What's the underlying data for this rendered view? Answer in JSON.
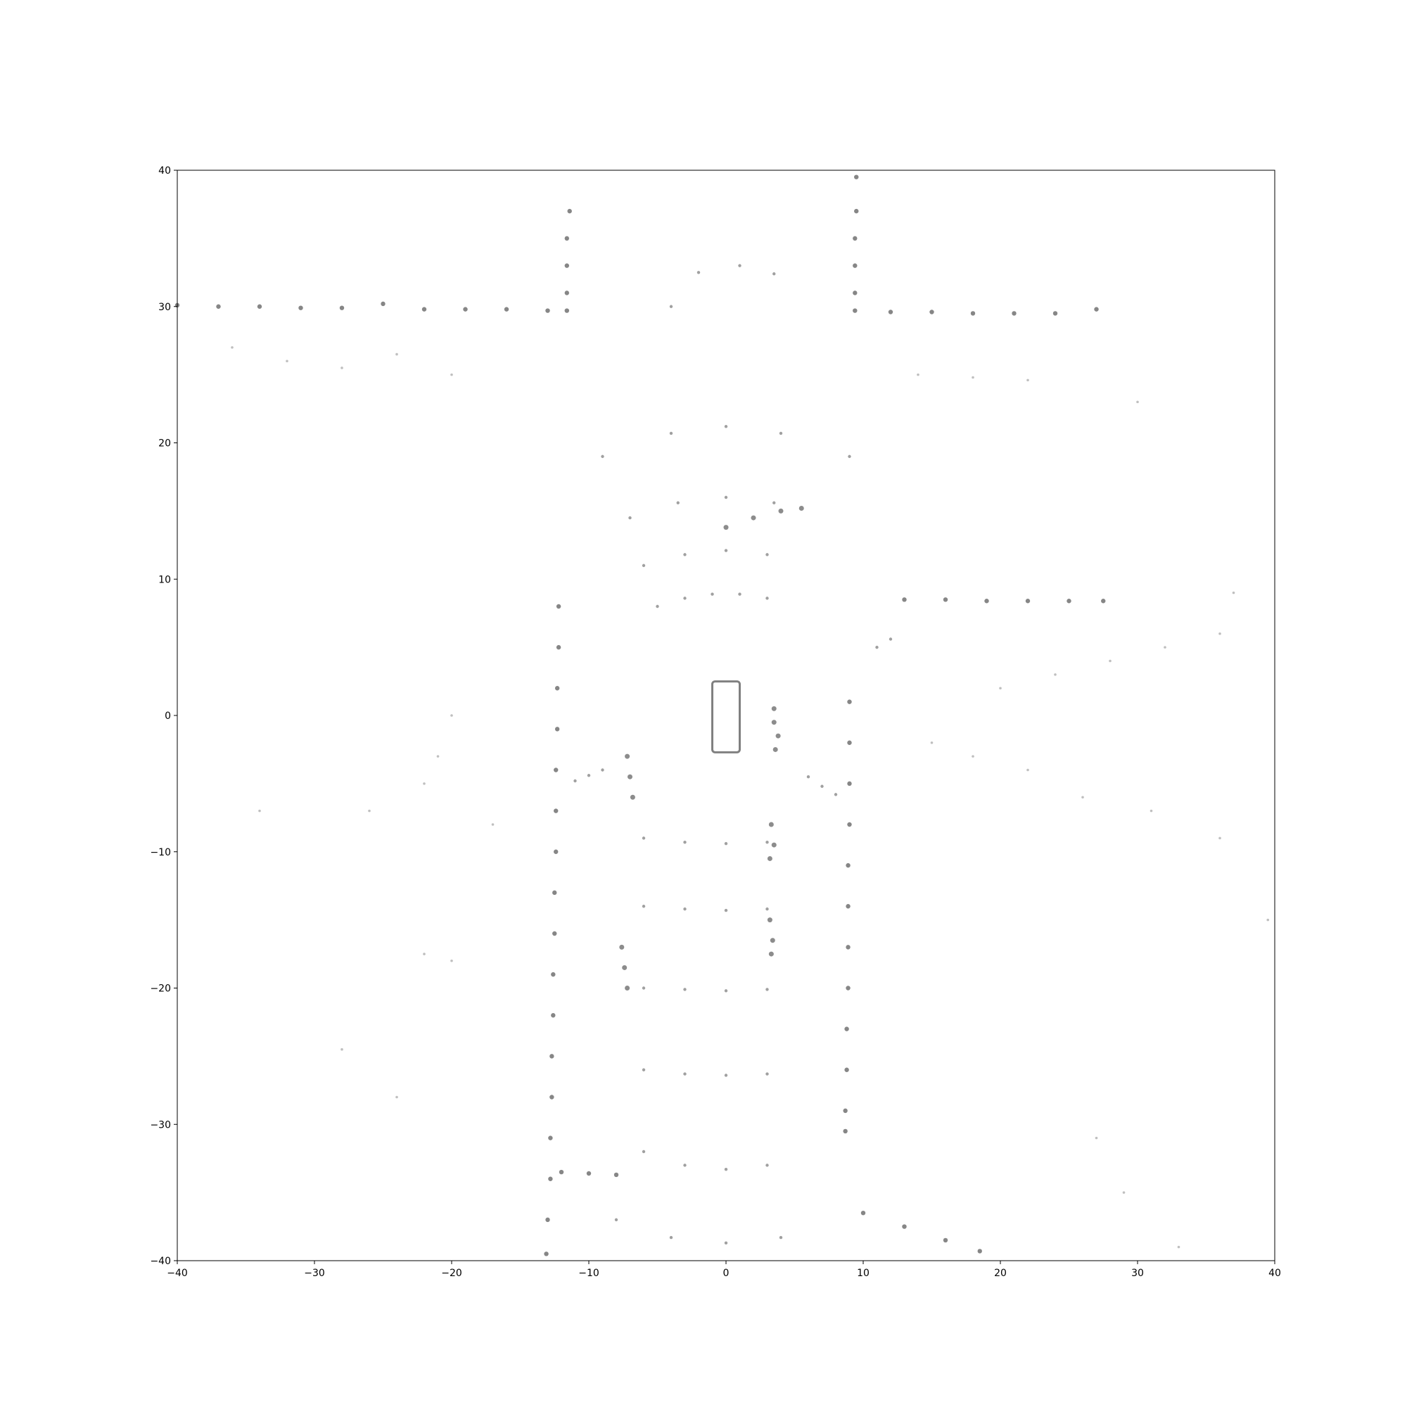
{
  "chart_data": {
    "type": "scatter",
    "title": "",
    "xlabel": "",
    "ylabel": "",
    "xlim": [
      -40,
      40
    ],
    "ylim": [
      -40,
      40
    ],
    "xticks": [
      -40,
      -30,
      -20,
      -10,
      0,
      10,
      20,
      30,
      40
    ],
    "yticks": [
      -40,
      -30,
      -20,
      -10,
      0,
      10,
      20,
      30,
      40
    ],
    "xtick_labels": [
      "−40",
      "−30",
      "−20",
      "−10",
      "0",
      "10",
      "20",
      "30",
      "40"
    ],
    "ytick_labels": [
      "−40",
      "−30",
      "−20",
      "−10",
      "0",
      "10",
      "20",
      "30",
      "40"
    ],
    "grid": false,
    "legend": "none",
    "point_color": "#808080",
    "description_of_scene": "top-down lidar point cloud",
    "ego_vehicle": {
      "x_range": [
        -1,
        1
      ],
      "y_range": [
        -2.7,
        2.5
      ]
    },
    "series": [
      {
        "kind": "wall",
        "points": [
          [
            -40,
            30.1
          ],
          [
            -37,
            30.0
          ],
          [
            -34,
            30.0
          ],
          [
            -31,
            29.9
          ],
          [
            -28,
            29.9
          ],
          [
            -25,
            30.2
          ],
          [
            -22,
            29.8
          ],
          [
            -19,
            29.8
          ],
          [
            -16,
            29.8
          ],
          [
            -13,
            29.7
          ],
          [
            -11.6,
            29.7
          ],
          [
            -11.6,
            31
          ],
          [
            -11.6,
            33
          ],
          [
            -11.6,
            35
          ],
          [
            -11.4,
            37
          ],
          [
            9.4,
            31
          ],
          [
            9.4,
            33
          ],
          [
            9.4,
            35
          ],
          [
            9.5,
            37
          ],
          [
            9.5,
            39.5
          ],
          [
            9.4,
            29.7
          ],
          [
            12,
            29.6
          ],
          [
            15,
            29.6
          ],
          [
            18,
            29.5
          ],
          [
            21,
            29.5
          ],
          [
            24,
            29.5
          ],
          [
            27,
            29.8
          ],
          [
            -12.2,
            8
          ],
          [
            -12.2,
            5
          ],
          [
            -12.3,
            2
          ],
          [
            -12.3,
            -1
          ],
          [
            -12.4,
            -4
          ],
          [
            -12.4,
            -7
          ],
          [
            -12.4,
            -10
          ],
          [
            -12.5,
            -13
          ],
          [
            -12.5,
            -16
          ],
          [
            -12.6,
            -19
          ],
          [
            -12.6,
            -22
          ],
          [
            -12.7,
            -25
          ],
          [
            -12.7,
            -28
          ],
          [
            -12.8,
            -31
          ],
          [
            -12.8,
            -34
          ],
          [
            -13.0,
            -37
          ],
          [
            -13.1,
            -39.5
          ],
          [
            9.0,
            1
          ],
          [
            9.0,
            -2
          ],
          [
            9.0,
            -5
          ],
          [
            9.0,
            -8
          ],
          [
            8.9,
            -11
          ],
          [
            8.9,
            -14
          ],
          [
            8.9,
            -17
          ],
          [
            8.9,
            -20
          ],
          [
            8.8,
            -23
          ],
          [
            8.8,
            -26
          ],
          [
            8.7,
            -29
          ],
          [
            8.7,
            -30.5
          ],
          [
            13,
            8.5
          ],
          [
            16,
            8.5
          ],
          [
            19,
            8.4
          ],
          [
            22,
            8.4
          ],
          [
            25,
            8.4
          ],
          [
            27.5,
            8.4
          ],
          [
            -12,
            -33.5
          ],
          [
            -10,
            -33.6
          ],
          [
            -8,
            -33.7
          ],
          [
            10,
            -36.5
          ],
          [
            13,
            -37.5
          ],
          [
            16,
            -38.5
          ],
          [
            18.5,
            -39.3
          ]
        ]
      },
      {
        "kind": "parked_vehicle",
        "points": [
          [
            3.5,
            -0.5
          ],
          [
            3.8,
            -1.5
          ],
          [
            3.6,
            -2.5
          ],
          [
            3.5,
            0.5
          ],
          [
            -7.2,
            -3
          ],
          [
            -7.0,
            -4.5
          ],
          [
            -6.8,
            -6
          ],
          [
            3.3,
            -8
          ],
          [
            3.5,
            -9.5
          ],
          [
            3.2,
            -10.5
          ],
          [
            3.2,
            -15
          ],
          [
            3.4,
            -16.5
          ],
          [
            3.3,
            -17.5
          ],
          [
            -7.6,
            -17
          ],
          [
            -7.4,
            -18.5
          ],
          [
            -7.2,
            -20
          ],
          [
            0,
            13.8
          ],
          [
            2,
            14.5
          ],
          [
            4,
            15
          ],
          [
            5.5,
            15.2
          ]
        ]
      },
      {
        "kind": "ground_ring",
        "points": [
          [
            -5,
            8
          ],
          [
            -3,
            8.6
          ],
          [
            -1,
            8.9
          ],
          [
            1,
            8.9
          ],
          [
            3,
            8.6
          ],
          [
            -6,
            11
          ],
          [
            -3,
            11.8
          ],
          [
            0,
            12.1
          ],
          [
            3,
            11.8
          ],
          [
            -7,
            14.5
          ],
          [
            -3.5,
            15.6
          ],
          [
            0,
            16
          ],
          [
            3.5,
            15.6
          ],
          [
            -9,
            19
          ],
          [
            -4,
            20.7
          ],
          [
            0,
            21.2
          ],
          [
            4,
            20.7
          ],
          [
            9,
            19
          ],
          [
            -6,
            -9
          ],
          [
            -3,
            -9.3
          ],
          [
            0,
            -9.4
          ],
          [
            3,
            -9.3
          ],
          [
            -6,
            -14
          ],
          [
            -3,
            -14.2
          ],
          [
            0,
            -14.3
          ],
          [
            3,
            -14.2
          ],
          [
            -6,
            -20
          ],
          [
            -3,
            -20.1
          ],
          [
            0,
            -20.2
          ],
          [
            3,
            -20.1
          ],
          [
            -6,
            -26
          ],
          [
            -3,
            -26.3
          ],
          [
            0,
            -26.4
          ],
          [
            3,
            -26.3
          ],
          [
            -6,
            -32
          ],
          [
            -3,
            -33
          ],
          [
            0,
            -33.3
          ],
          [
            3,
            -33
          ],
          [
            -8,
            -37
          ],
          [
            -4,
            -38.3
          ],
          [
            0,
            -38.7
          ],
          [
            4,
            -38.3
          ],
          [
            -9,
            -4
          ],
          [
            -10,
            -4.4
          ],
          [
            -11,
            -4.8
          ],
          [
            6,
            -4.5
          ],
          [
            7,
            -5.2
          ],
          [
            8,
            -5.8
          ],
          [
            11,
            5
          ],
          [
            12,
            5.6
          ],
          [
            -4,
            30
          ],
          [
            -2,
            32.5
          ],
          [
            1,
            33
          ],
          [
            3.5,
            32.4
          ]
        ]
      },
      {
        "kind": "sparse_far",
        "points": [
          [
            -36,
            27
          ],
          [
            -32,
            26
          ],
          [
            -28,
            25.5
          ],
          [
            -24,
            26.5
          ],
          [
            -20,
            25
          ],
          [
            14,
            25
          ],
          [
            18,
            24.8
          ],
          [
            22,
            24.6
          ],
          [
            -20,
            0
          ],
          [
            -21,
            -3
          ],
          [
            -22,
            -5
          ],
          [
            -17,
            -8
          ],
          [
            -26,
            -7
          ],
          [
            -34,
            -7
          ],
          [
            -20,
            -18
          ],
          [
            -22,
            -17.5
          ],
          [
            15,
            -2
          ],
          [
            18,
            -3
          ],
          [
            22,
            -4
          ],
          [
            26,
            -6
          ],
          [
            31,
            -7
          ],
          [
            36,
            -9
          ],
          [
            20,
            2
          ],
          [
            24,
            3
          ],
          [
            28,
            4
          ],
          [
            32,
            5
          ],
          [
            36,
            6
          ],
          [
            30,
            23
          ],
          [
            37,
            9
          ],
          [
            39.5,
            -15
          ],
          [
            27,
            -31
          ],
          [
            29,
            -35
          ],
          [
            33,
            -39
          ],
          [
            -28,
            -24.5
          ],
          [
            -24,
            -28
          ]
        ]
      }
    ]
  }
}
